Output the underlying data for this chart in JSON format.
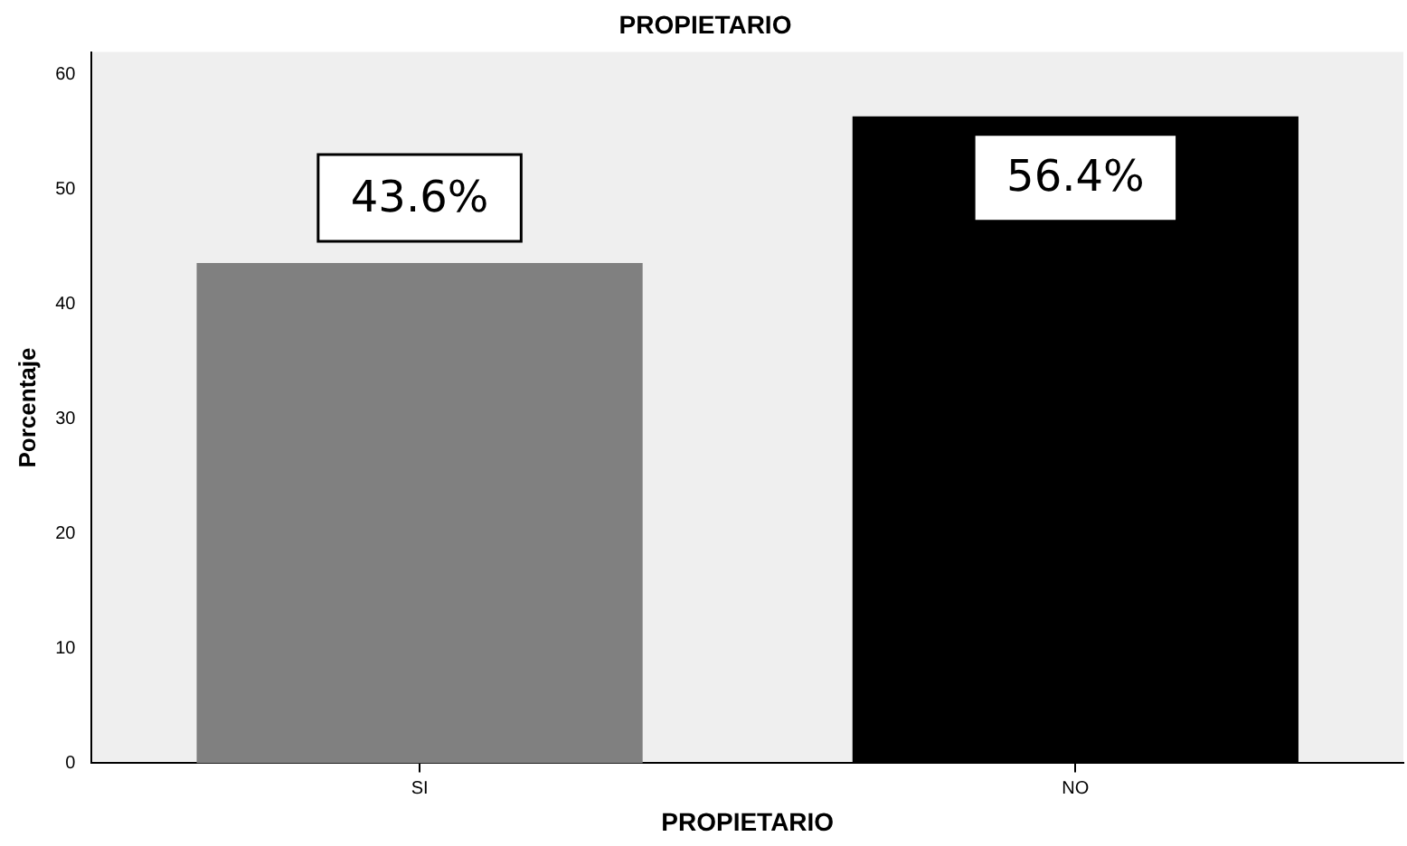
{
  "chart_data": {
    "type": "bar",
    "title": "PROPIETARIO",
    "xlabel": "PROPIETARIO",
    "ylabel": "Porcentaje",
    "categories": [
      "SI",
      "NO"
    ],
    "values": [
      43.6,
      56.4
    ],
    "colors": [
      "#808080",
      "#000000"
    ],
    "value_labels": [
      "43.6%",
      "56.4%"
    ],
    "ylim": [
      0,
      62
    ],
    "yticks": [
      0,
      10,
      20,
      30,
      40,
      50,
      60
    ],
    "grid": false,
    "legend": false
  }
}
